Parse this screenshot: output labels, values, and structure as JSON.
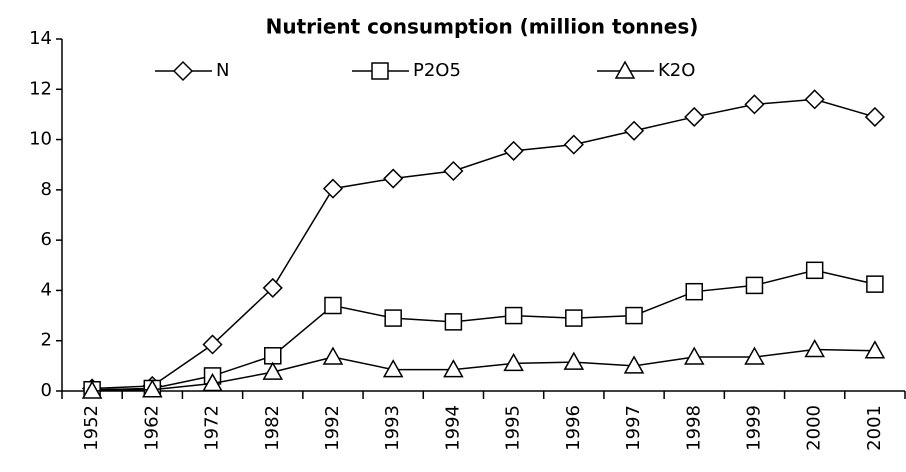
{
  "chart_data": {
    "type": "line",
    "title": "Nutrient consumption (million tonnes)",
    "categories": [
      "1952",
      "1962",
      "1972",
      "1982",
      "1992",
      "1993",
      "1994",
      "1995",
      "1996",
      "1997",
      "1998",
      "1999",
      "2000",
      "2001"
    ],
    "series": [
      {
        "name": "N",
        "color": "#000000",
        "marker": "diamond",
        "values": [
          0.1,
          0.2,
          1.85,
          4.1,
          8.05,
          8.45,
          8.75,
          9.55,
          9.8,
          10.35,
          10.9,
          11.4,
          11.6,
          10.9
        ]
      },
      {
        "name": "P2O5",
        "color": "#000000",
        "marker": "square",
        "values": [
          0.05,
          0.1,
          0.6,
          1.4,
          3.4,
          2.9,
          2.75,
          3.0,
          2.9,
          3.0,
          3.95,
          4.2,
          4.8,
          4.25
        ]
      },
      {
        "name": "K2O",
        "color": "#000000",
        "marker": "triangle",
        "values": [
          0.0,
          0.05,
          0.3,
          0.75,
          1.35,
          0.85,
          0.85,
          1.1,
          1.15,
          1.0,
          1.35,
          1.35,
          1.65,
          1.6
        ]
      }
    ],
    "ylim": [
      0,
      14
    ],
    "yticks": [
      0,
      2,
      4,
      6,
      8,
      10,
      12,
      14
    ],
    "grid": false,
    "legend": "top"
  }
}
